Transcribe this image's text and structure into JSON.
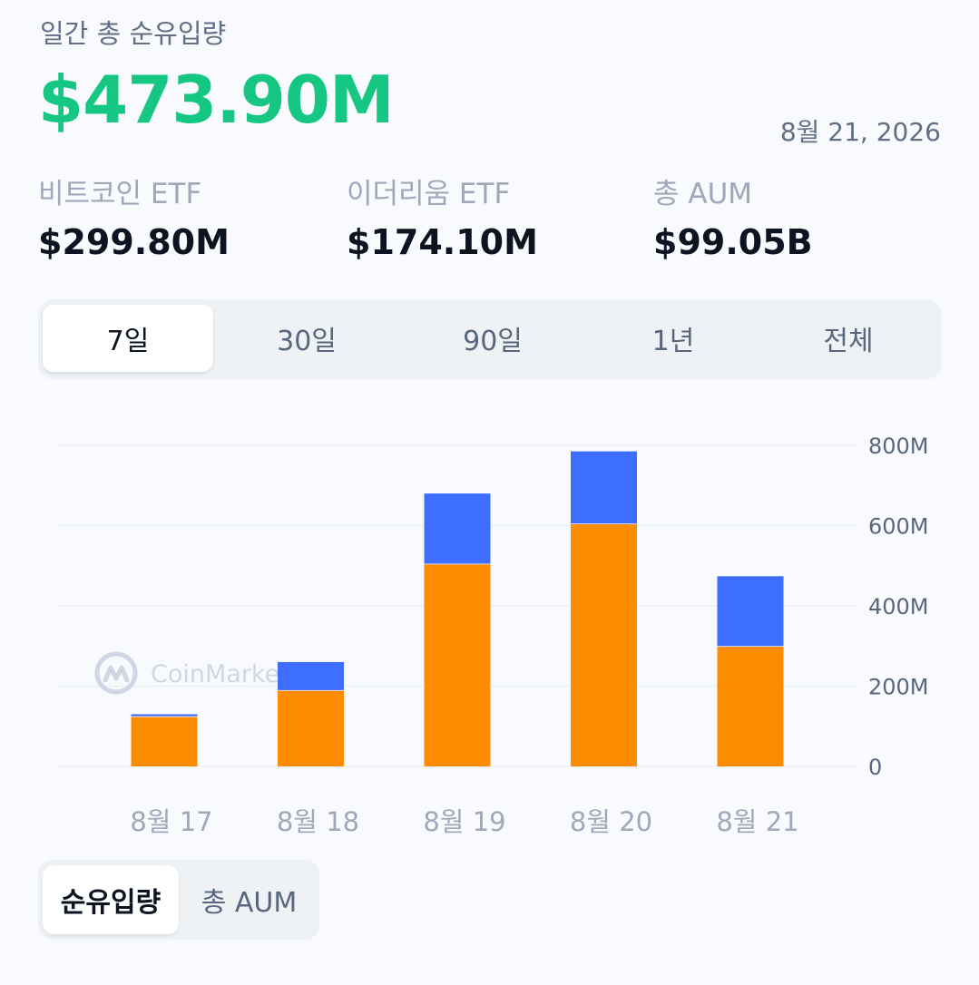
{
  "header": {
    "title": "일간 총 순유입량",
    "total_value": "$473.90M",
    "date": "8월 21, 2026"
  },
  "stats": [
    {
      "label": "비트코인 ETF",
      "value": "$299.80M"
    },
    {
      "label": "이더리움 ETF",
      "value": "$174.10M"
    },
    {
      "label": "총 AUM",
      "value": "$99.05B"
    }
  ],
  "period_tabs": {
    "items": [
      "7일",
      "30일",
      "90일",
      "1년",
      "전체"
    ],
    "selected": "7일"
  },
  "metric_tabs": {
    "items": [
      "순유입량",
      "총 AUM"
    ],
    "selected": "순유입량"
  },
  "watermark": "CoinMarketCap",
  "colors": {
    "accent_green": "#16c784",
    "bitcoin": "#fe8c00",
    "ethereum": "#3d6eff"
  },
  "chart_data": {
    "type": "bar",
    "stacked": true,
    "categories": [
      "8월 17",
      "8월 18",
      "8월 19",
      "8월 20",
      "8월 21"
    ],
    "series": [
      {
        "name": "",
        "color": "#fe8c00",
        "values": [
          125,
          190,
          505,
          605,
          299.8
        ]
      },
      {
        "name": "",
        "color": "#3d6eff",
        "values": [
          5,
          70,
          175,
          180,
          174.1
        ]
      }
    ],
    "yticks": [
      "0",
      "200M",
      "400M",
      "600M",
      "800M"
    ],
    "ylim": [
      0,
      800
    ],
    "grid": true,
    "y_axis_side": "right"
  }
}
